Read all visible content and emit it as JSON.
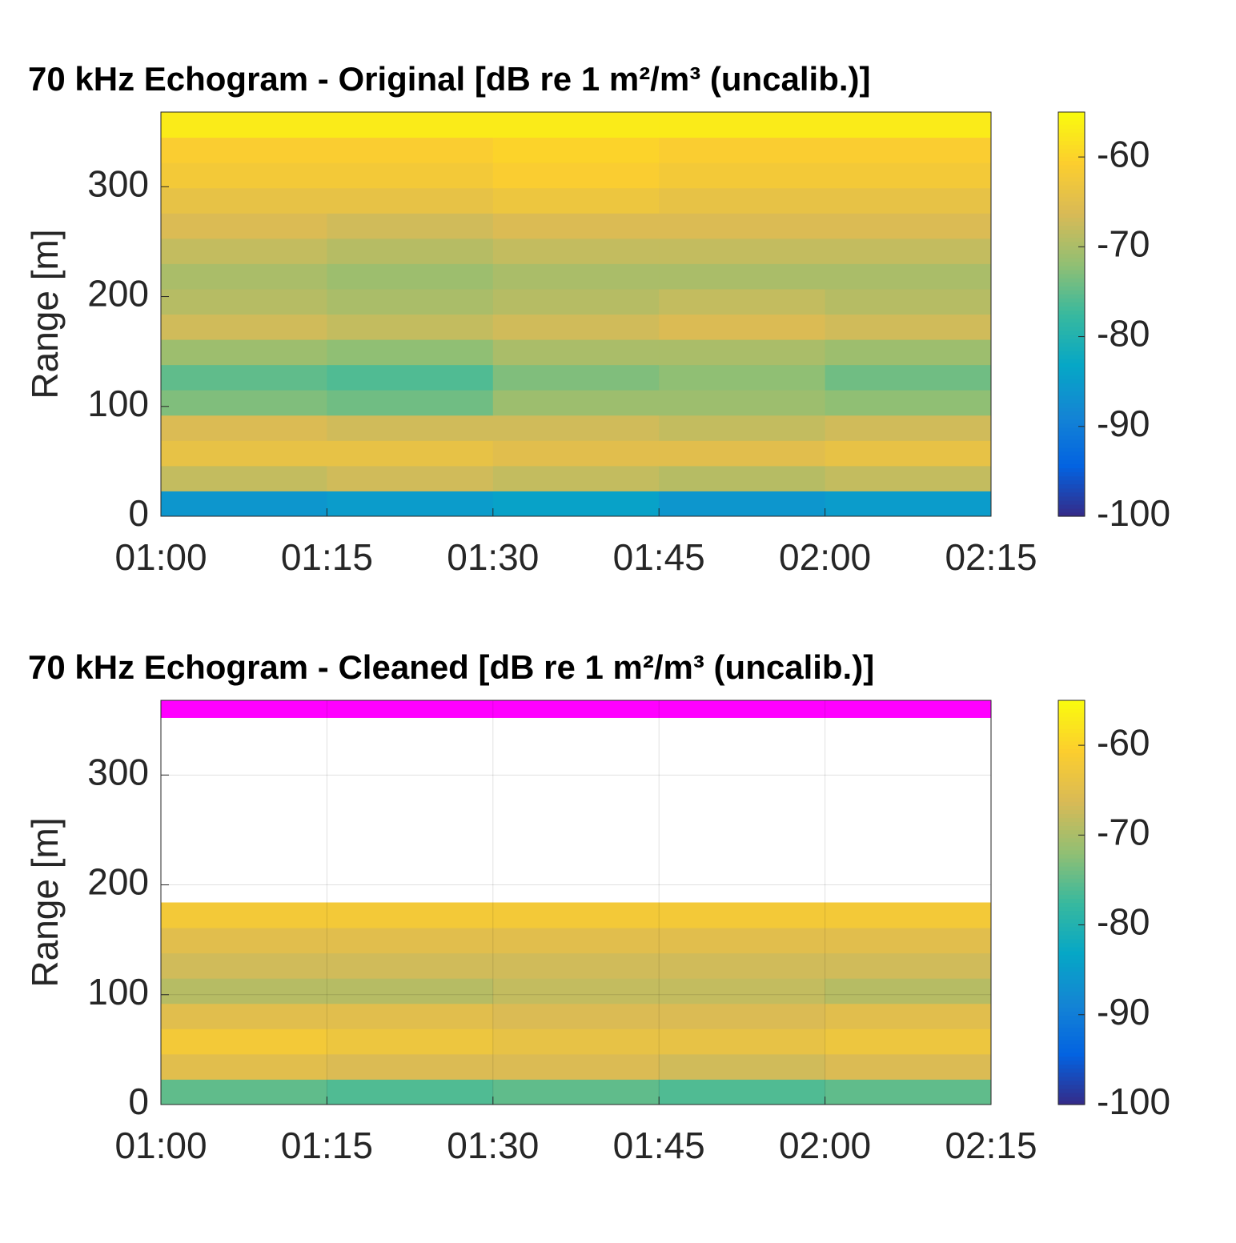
{
  "chart_data": [
    {
      "type": "heatmap",
      "title": "70 kHz Echogram - Original [dB re 1 m²/m³ (uncalib.)]",
      "y_label": "Range [m]",
      "xticks": [
        "01:00",
        "01:15",
        "01:30",
        "01:45",
        "02:00",
        "02:15"
      ],
      "ylim": [
        0,
        368
      ],
      "yticks": [
        0,
        100,
        200,
        300
      ],
      "y_bins": [
        0,
        23,
        46,
        69,
        92,
        115,
        138,
        161,
        184,
        207,
        230,
        253,
        276,
        299,
        322,
        345,
        368
      ],
      "values": [
        [
          -86,
          -85,
          -84,
          -86,
          -85
        ],
        [
          -68,
          -67,
          -68,
          -69,
          -68
        ],
        [
          -64,
          -64,
          -65,
          -65,
          -64
        ],
        [
          -66,
          -67,
          -67,
          -68,
          -67
        ],
        [
          -73,
          -74,
          -71,
          -71,
          -72
        ],
        [
          -75,
          -76,
          -73,
          -72,
          -74
        ],
        [
          -71,
          -72,
          -70,
          -70,
          -71
        ],
        [
          -67,
          -68,
          -67,
          -66,
          -67
        ],
        [
          -69,
          -70,
          -69,
          -68,
          -69
        ],
        [
          -70,
          -71,
          -70,
          -70,
          -70
        ],
        [
          -68,
          -69,
          -68,
          -68,
          -68
        ],
        [
          -66,
          -67,
          -66,
          -66,
          -66
        ],
        [
          -64,
          -64,
          -63,
          -64,
          -64
        ],
        [
          -62,
          -62,
          -61,
          -62,
          -62
        ],
        [
          -61,
          -61,
          -60,
          -61,
          -61
        ],
        [
          -57,
          -57,
          -57,
          -57,
          -57
        ]
      ],
      "clim": [
        -100,
        -55
      ],
      "cticks": [
        -100,
        -90,
        -80,
        -70,
        -60
      ],
      "colormap": [
        "#352a87",
        "#0363e1",
        "#1485d4",
        "#06a7c6",
        "#38b99e",
        "#92bf73",
        "#d9ba56",
        "#fcce2e",
        "#f9fb0e"
      ],
      "grid": false
    },
    {
      "type": "heatmap",
      "title": "70 kHz Echogram - Cleaned [dB re 1 m²/m³ (uncalib.)]",
      "y_label": "Range [m]",
      "xticks": [
        "01:00",
        "01:15",
        "01:30",
        "01:45",
        "02:00",
        "02:15"
      ],
      "ylim": [
        0,
        368
      ],
      "yticks": [
        0,
        100,
        200,
        300
      ],
      "y_bins": [
        0,
        23,
        46,
        69,
        92,
        115,
        138,
        161,
        184,
        207,
        230,
        253,
        276,
        299,
        322,
        345,
        368
      ],
      "values": [
        [
          -75,
          -76,
          -75,
          -76,
          -75
        ],
        [
          -65,
          -66,
          -66,
          -67,
          -66
        ],
        [
          -62,
          -63,
          -64,
          -64,
          -63
        ],
        [
          -65,
          -65,
          -66,
          -66,
          -65
        ],
        [
          -69,
          -69,
          -68,
          -68,
          -69
        ],
        [
          -67,
          -67,
          -67,
          -67,
          -67
        ],
        [
          -65,
          -65,
          -65,
          -65,
          -65
        ],
        [
          -62,
          -62,
          -62,
          -62,
          -62
        ],
        [
          null,
          null,
          null,
          null,
          null
        ],
        [
          null,
          null,
          null,
          null,
          null
        ],
        [
          null,
          null,
          null,
          null,
          null
        ],
        [
          null,
          null,
          null,
          null,
          null
        ],
        [
          null,
          null,
          null,
          null,
          null
        ],
        [
          null,
          null,
          null,
          null,
          null
        ],
        [
          null,
          null,
          null,
          null,
          null
        ],
        [
          null,
          null,
          null,
          null,
          null
        ]
      ],
      "mask": {
        "color": "#ff00ff",
        "ylim": [
          352,
          368
        ]
      },
      "clim": [
        -100,
        -55
      ],
      "cticks": [
        -100,
        -90,
        -80,
        -70,
        -60
      ],
      "colormap": [
        "#352a87",
        "#0363e1",
        "#1485d4",
        "#06a7c6",
        "#38b99e",
        "#92bf73",
        "#d9ba56",
        "#fcce2e",
        "#f9fb0e"
      ],
      "grid": true
    }
  ]
}
